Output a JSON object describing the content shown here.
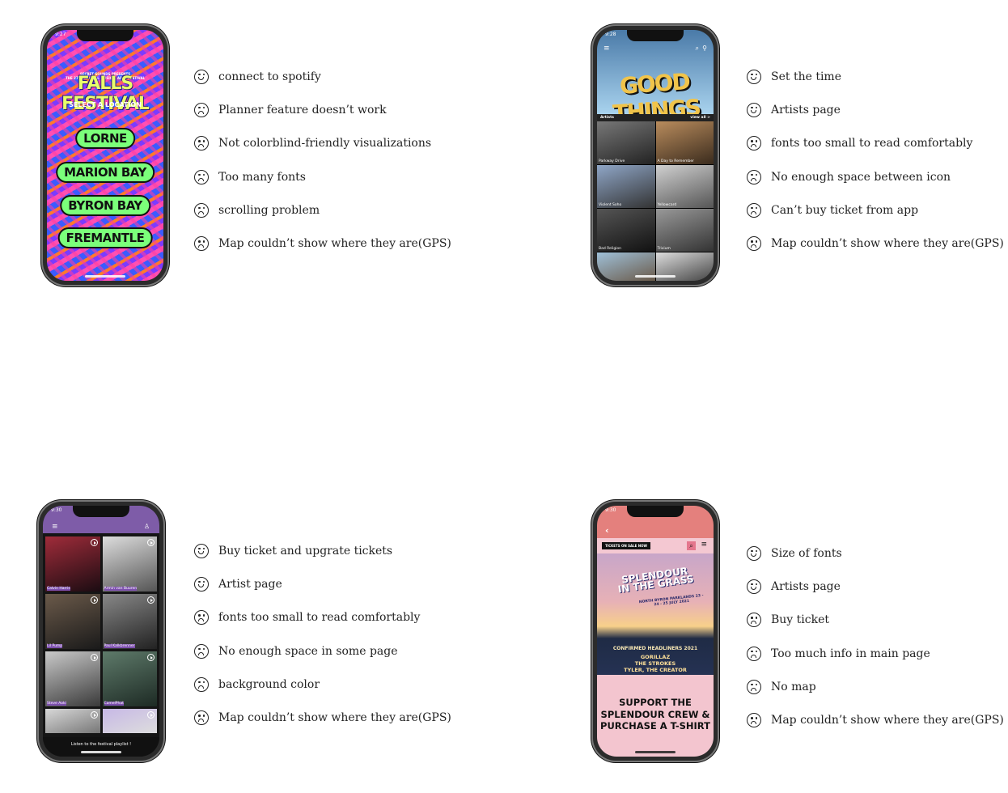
{
  "phone1": {
    "status_time": "9:27",
    "small_text_1": "SECRET SOUNDS PRESENTS",
    "small_text_2": "THE 27TH ANNUAL MUSIC & ARTS FESTIVAL",
    "title": "FALLS FESTIVAL",
    "select_label": "SELECT A LOCATION",
    "locations": [
      "LORNE",
      "MARION BAY",
      "BYRON BAY",
      "FREMANTLE"
    ]
  },
  "notes1": [
    {
      "face": "happy",
      "text": "connect to spotify"
    },
    {
      "face": "sad",
      "text": "Planner feature doesn’t work"
    },
    {
      "face": "sad",
      "text": "Not colorblind-friendly visualizations"
    },
    {
      "face": "sad",
      "text": "Too many fonts"
    },
    {
      "face": "sad",
      "text": "scrolling problem"
    },
    {
      "face": "sad",
      "text": "Map couldn’t show where they are(GPS)"
    }
  ],
  "phone2": {
    "status_time": "9:28",
    "title": "GOOD THINGS",
    "section": "Artists",
    "view_all": "view all >",
    "artists": [
      "Parkway Drive",
      "A Day to Remember",
      "Violent Soho",
      "Yellowcard",
      "Bad Religion",
      "Trivium",
      "",
      ""
    ]
  },
  "notes2": [
    {
      "face": "happy",
      "text": "Set the time"
    },
    {
      "face": "happy",
      "text": "Artists page"
    },
    {
      "face": "sad",
      "text": " fonts too small to read comfortably"
    },
    {
      "face": "sad",
      "text": "No enough space between icon"
    },
    {
      "face": "sad",
      "text": "Can’t buy ticket from app"
    },
    {
      "face": "sad",
      "text": "Map couldn’t show where they are(GPS)"
    }
  ],
  "phone3": {
    "status_time": "9:30",
    "artists": [
      "Calvin Harris",
      "Armin van Buuren",
      "Lil Pump",
      "Paul Kalkbrenner",
      "Steve Aoki",
      "CamelPhat",
      "",
      ""
    ],
    "footer": "Listen to the festival playlist !"
  },
  "notes3": [
    {
      "face": "happy",
      "text": "Buy ticket and upgrate tickets"
    },
    {
      "face": "happy",
      "text": "Artist page"
    },
    {
      "face": "sad",
      "text": " fonts too small to read comfortably"
    },
    {
      "face": "sad",
      "text": "No enough space in some page"
    },
    {
      "face": "sad",
      "text": "background color"
    },
    {
      "face": "sad",
      "text": "Map couldn’t show where they are(GPS)"
    }
  ],
  "phone4": {
    "status_time": "9:30",
    "tickets_button": "TICKETS ON SALE NOW",
    "title_line1": "SPLENDOUR",
    "title_line2": "IN THE GRASS",
    "dates": "NORTH BYRON PARKLANDS 23 - 24 - 25 JULY 2021",
    "headliners_label": "CONFIRMED HEADLINERS 2021",
    "acts": [
      "GORILLAZ",
      "THE STROKES",
      "TYLER, THE CREATOR"
    ],
    "support_line1": "SUPPORT THE",
    "support_line2": "SPLENDOUR CREW &",
    "support_line3": "PURCHASE A T-SHIRT"
  },
  "notes4": [
    {
      "face": "happy",
      "text": "Size of fonts"
    },
    {
      "face": "happy",
      "text": "Artists page"
    },
    {
      "face": "sad",
      "text": "Buy ticket"
    },
    {
      "face": "sad",
      "text": "Too much info in main page"
    },
    {
      "face": "sad",
      "text": "No map"
    },
    {
      "face": "sad",
      "text": "Map couldn’t show where they are(GPS)"
    }
  ]
}
